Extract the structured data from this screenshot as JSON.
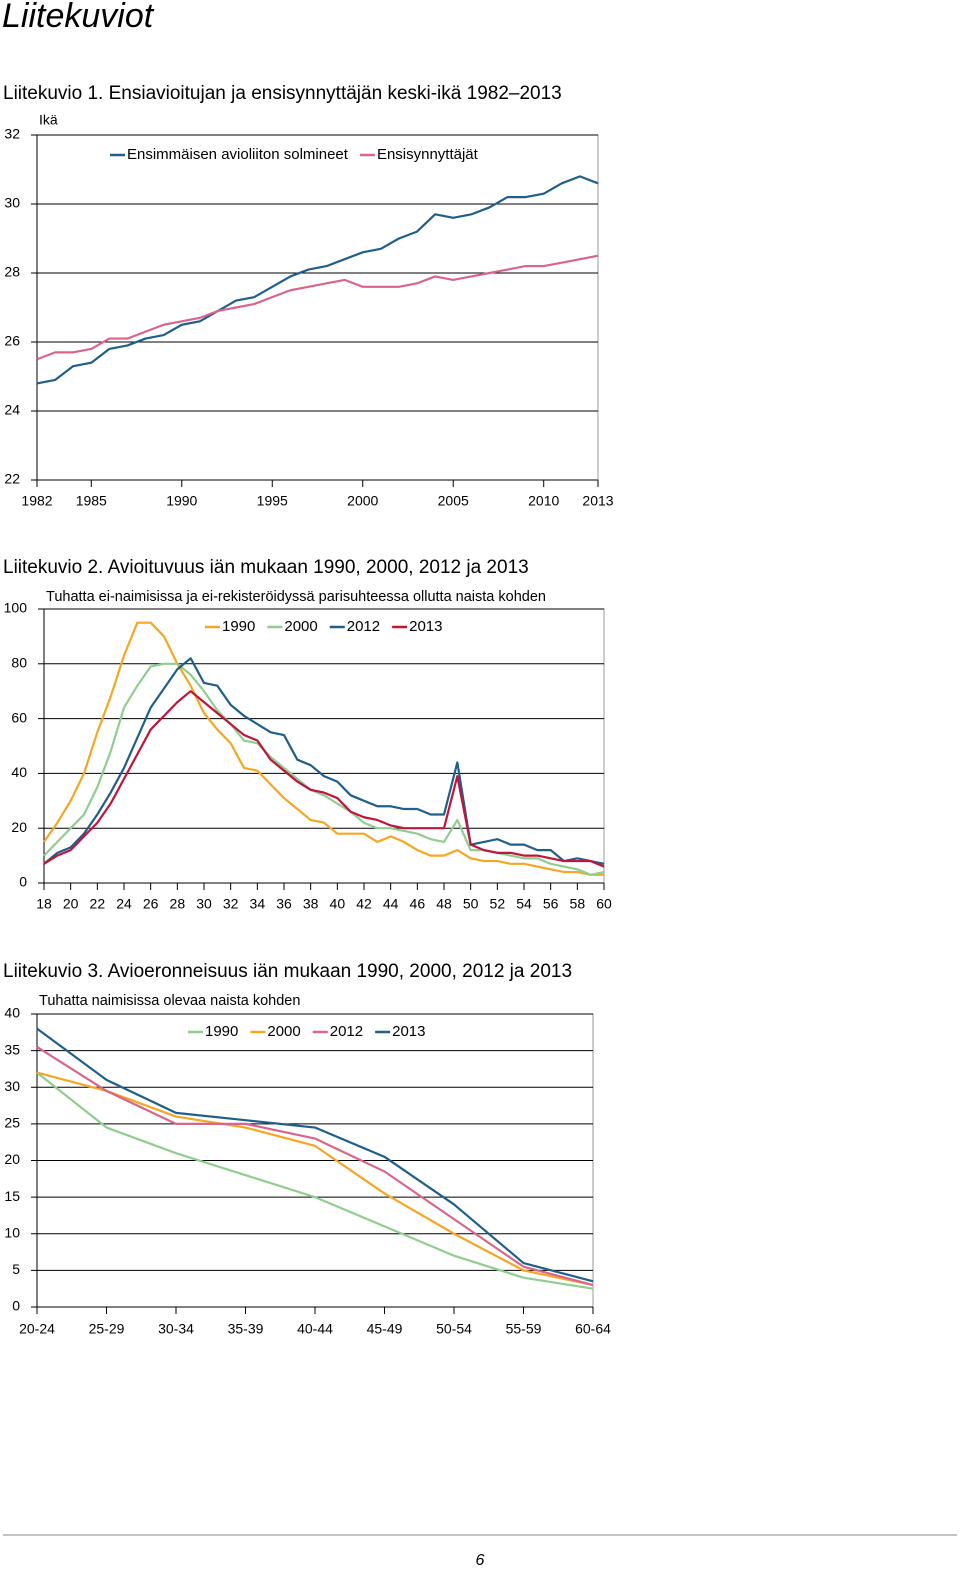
{
  "page": {
    "heading": "Liitekuviot",
    "page_number": 6
  },
  "chart_data": [
    {
      "type": "line",
      "title": "Liitekuvio 1. Ensiavioitujan ja ensisynnyttäjän keski-ikä 1982–2013",
      "y_label": "Ikä",
      "x": [
        1982,
        1983,
        1984,
        1985,
        1986,
        1987,
        1988,
        1989,
        1990,
        1991,
        1992,
        1993,
        1994,
        1995,
        1996,
        1997,
        1998,
        1999,
        2000,
        2001,
        2002,
        2003,
        2004,
        2005,
        2006,
        2007,
        2008,
        2009,
        2010,
        2011,
        2012,
        2013
      ],
      "xlim": [
        1982,
        2013
      ],
      "xticks": [
        1982,
        1985,
        1990,
        1995,
        2000,
        2005,
        2010,
        2013
      ],
      "ylim": [
        22,
        32
      ],
      "yticks": [
        22,
        24,
        26,
        28,
        30,
        32
      ],
      "grid": true,
      "series": [
        {
          "name": "Ensimmäisen avioliiton solmineet",
          "color": "#1f5f8b",
          "values": [
            24.8,
            24.9,
            25.3,
            25.4,
            25.8,
            25.9,
            26.1,
            26.2,
            26.5,
            26.6,
            26.9,
            27.2,
            27.3,
            27.6,
            27.9,
            28.1,
            28.2,
            28.4,
            28.6,
            28.7,
            29.0,
            29.2,
            29.7,
            29.6,
            29.7,
            29.9,
            30.2,
            30.2,
            30.3,
            30.6,
            30.8,
            30.6
          ]
        },
        {
          "name": "Ensisynnyttäjät",
          "color": "#d9668a",
          "values": [
            25.5,
            25.7,
            25.7,
            25.8,
            26.1,
            26.1,
            26.3,
            26.5,
            26.6,
            26.7,
            26.9,
            27.0,
            27.1,
            27.3,
            27.5,
            27.6,
            27.7,
            27.8,
            27.6,
            27.6,
            27.6,
            27.7,
            27.9,
            27.8,
            27.9,
            28.0,
            28.1,
            28.2,
            28.2,
            28.3,
            28.4,
            28.5
          ]
        }
      ]
    },
    {
      "type": "line",
      "title": "Liitekuvio 2. Avioituvuus iän mukaan 1990, 2000, 2012 ja 2013",
      "subtitle": "Tuhatta ei-naimisissa ja ei-rekisteröidyssä parisuhteessa ollutta naista kohden",
      "x": [
        18,
        19,
        20,
        21,
        22,
        23,
        24,
        25,
        26,
        27,
        28,
        29,
        30,
        31,
        32,
        33,
        34,
        35,
        36,
        37,
        38,
        39,
        40,
        41,
        42,
        43,
        44,
        45,
        46,
        47,
        48,
        49,
        50,
        51,
        52,
        53,
        54,
        55,
        56,
        57,
        58,
        59,
        60
      ],
      "xlim": [
        18,
        60
      ],
      "xticks": [
        18,
        20,
        22,
        24,
        26,
        28,
        30,
        32,
        34,
        36,
        38,
        40,
        42,
        44,
        46,
        48,
        50,
        52,
        54,
        56,
        58,
        60
      ],
      "ylim": [
        0,
        100
      ],
      "yticks": [
        0,
        20,
        40,
        60,
        80,
        100
      ],
      "grid": true,
      "series": [
        {
          "name": "1990",
          "color": "#f5a623",
          "values": [
            15,
            22,
            30,
            40,
            55,
            68,
            83,
            95,
            95,
            90,
            80,
            72,
            62,
            56,
            51,
            42,
            41,
            36,
            31,
            27,
            23,
            22,
            18,
            18,
            18,
            15,
            17,
            15,
            12,
            10,
            10,
            12,
            9,
            8,
            8,
            7,
            7,
            6,
            5,
            4,
            4,
            3,
            3
          ]
        },
        {
          "name": "2000",
          "color": "#8fce8f",
          "values": [
            10,
            15,
            20,
            25,
            35,
            48,
            64,
            72,
            79,
            80,
            80,
            76,
            70,
            63,
            58,
            52,
            51,
            46,
            42,
            38,
            34,
            32,
            29,
            26,
            22,
            20,
            20,
            19,
            18,
            16,
            15,
            23,
            12,
            12,
            11,
            10,
            9,
            9,
            7,
            6,
            5,
            3,
            4
          ]
        },
        {
          "name": "2012",
          "color": "#1f5f8b",
          "values": [
            7,
            11,
            13,
            18,
            25,
            33,
            42,
            53,
            64,
            71,
            78,
            82,
            73,
            72,
            65,
            61,
            58,
            55,
            54,
            45,
            43,
            39,
            37,
            32,
            30,
            28,
            28,
            27,
            27,
            25,
            25,
            44,
            14,
            15,
            16,
            14,
            14,
            12,
            12,
            8,
            9,
            8,
            7
          ]
        },
        {
          "name": "2013",
          "color": "#c0143c",
          "values": [
            7,
            10,
            12,
            17,
            22,
            29,
            38,
            47,
            56,
            61,
            66,
            70,
            66,
            62,
            58,
            54,
            52,
            45,
            41,
            37,
            34,
            33,
            31,
            26,
            24,
            23,
            21,
            20,
            20,
            20,
            20,
            39,
            14,
            12,
            11,
            11,
            10,
            10,
            9,
            8,
            8,
            8,
            6
          ]
        }
      ]
    },
    {
      "type": "line",
      "title": "Liitekuvio 3. Avioeronneisuus iän mukaan 1990, 2000, 2012 ja 2013",
      "subtitle": "Tuhatta naimisissa olevaa naista kohden",
      "categories": [
        "20-24",
        "25-29",
        "30-34",
        "35-39",
        "40-44",
        "45-49",
        "50-54",
        "55-59",
        "60-64"
      ],
      "ylim": [
        0,
        40
      ],
      "yticks": [
        0,
        5,
        10,
        15,
        20,
        25,
        30,
        35,
        40
      ],
      "grid": true,
      "series": [
        {
          "name": "1990",
          "color": "#8fce8f",
          "values": [
            32,
            24.5,
            21,
            18,
            15,
            11,
            7,
            4,
            2.5
          ]
        },
        {
          "name": "2000",
          "color": "#f5a623",
          "values": [
            32,
            29.5,
            26,
            24.5,
            22,
            15.5,
            10,
            5,
            3
          ]
        },
        {
          "name": "2012",
          "color": "#d9668a",
          "values": [
            35.5,
            29.5,
            25,
            25,
            23,
            18.5,
            12,
            5.5,
            3
          ]
        },
        {
          "name": "2013",
          "color": "#1f5f8b",
          "values": [
            38,
            31,
            26.5,
            25.5,
            24.5,
            20.5,
            14,
            6,
            3.5
          ]
        }
      ]
    }
  ]
}
